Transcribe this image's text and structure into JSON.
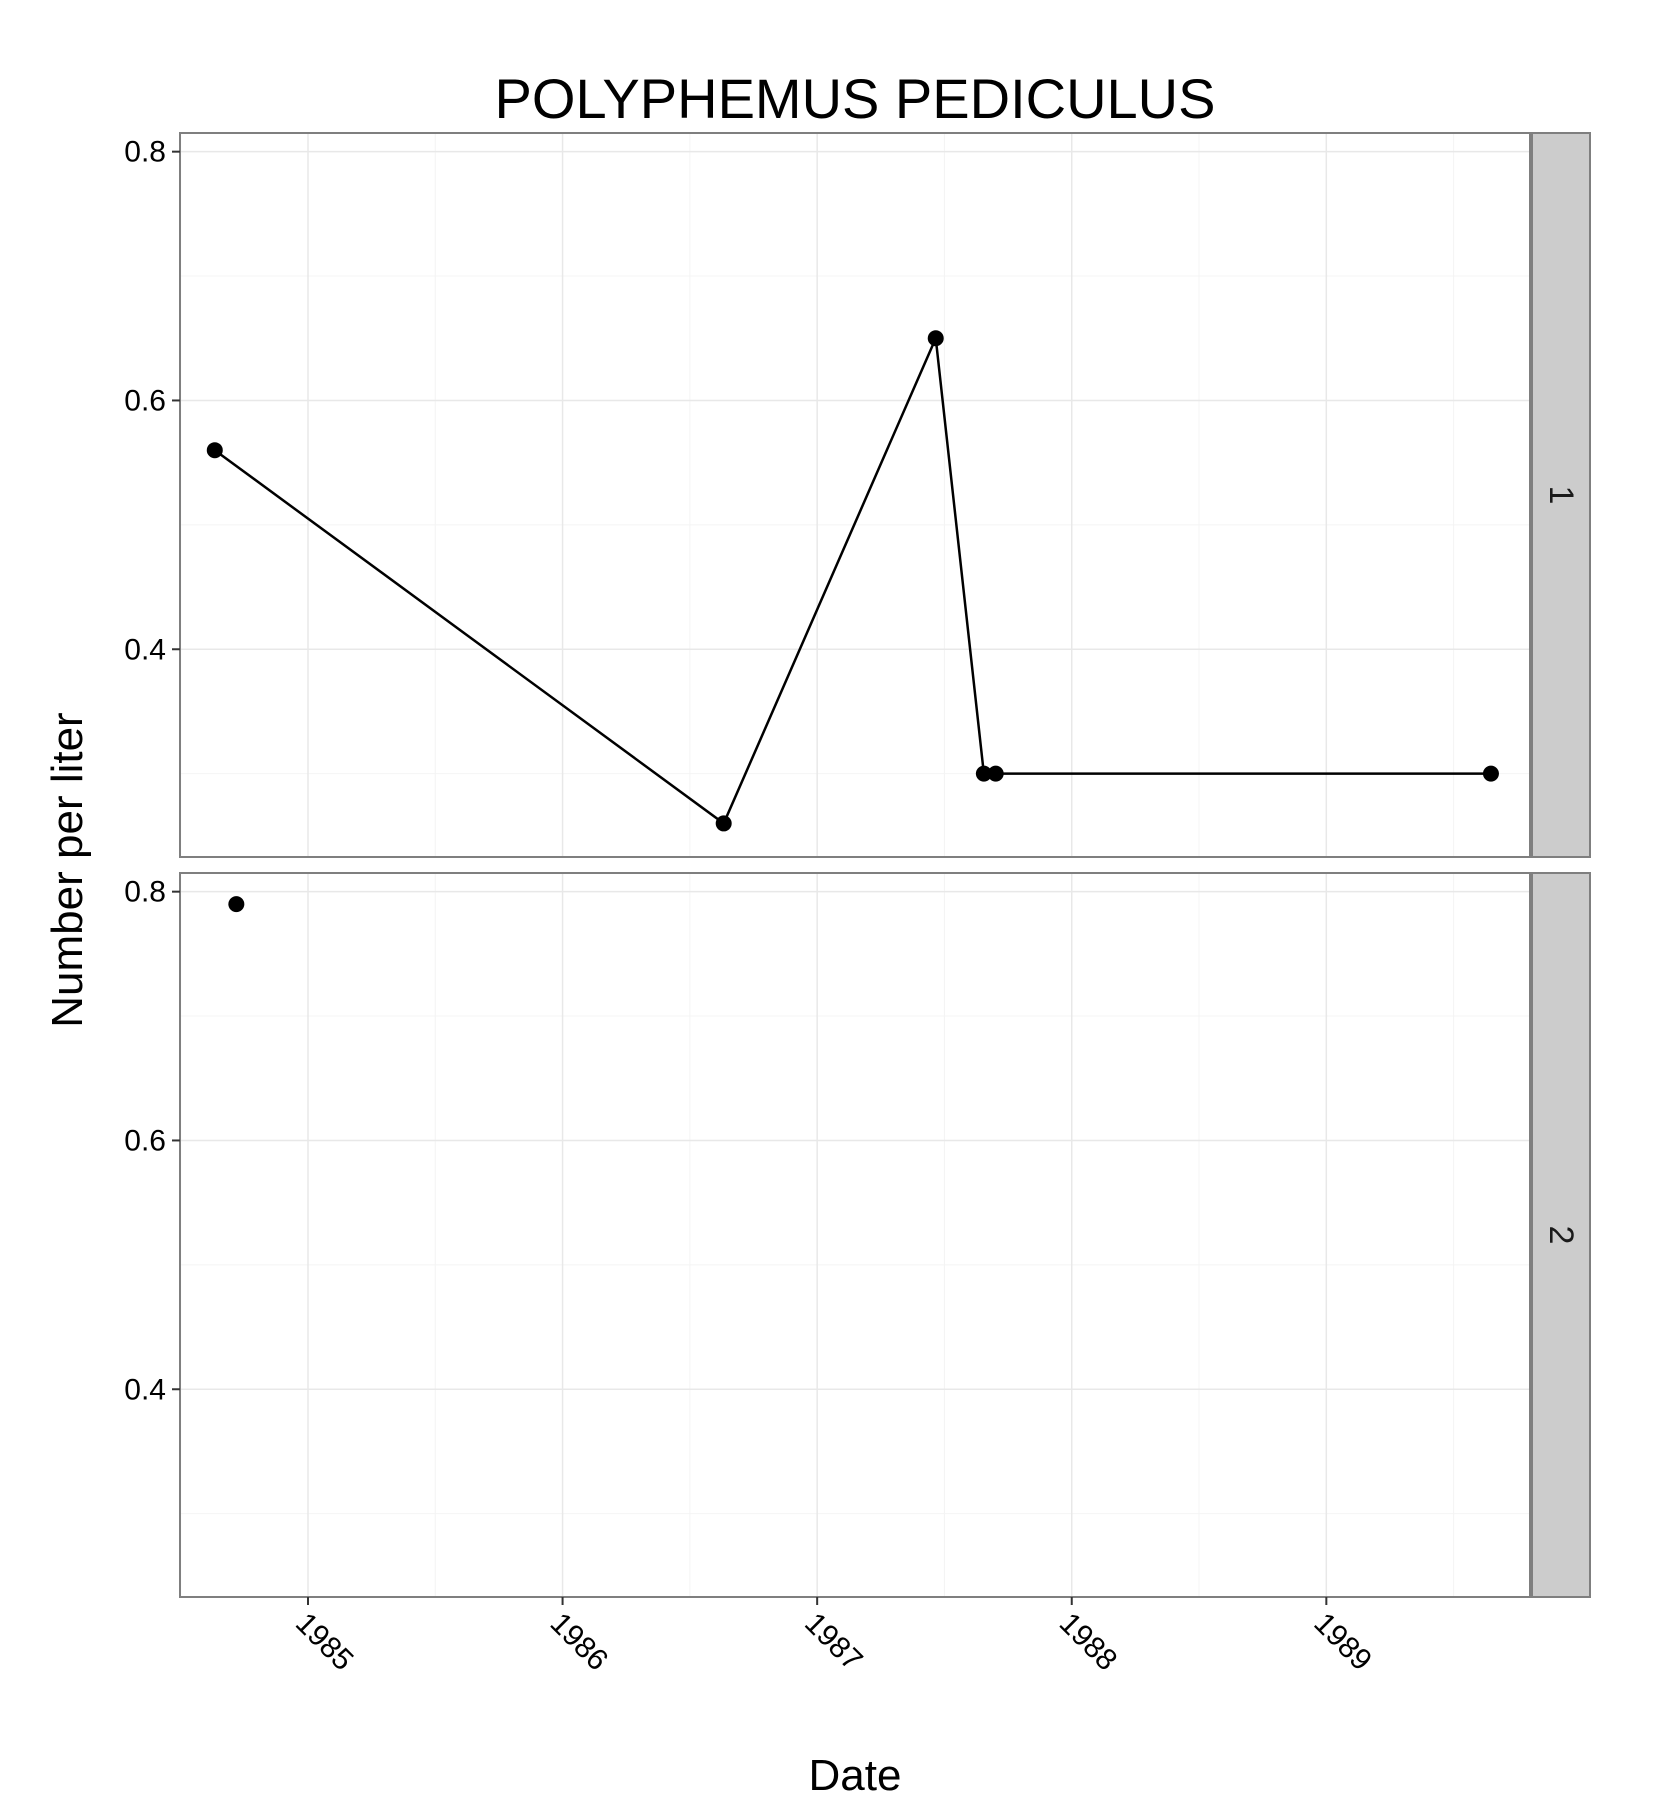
{
  "chart_data": {
    "type": "line",
    "title": "POLYPHEMUS PEDICULUS",
    "xlabel": "Date",
    "ylabel": "Number per liter",
    "xlim": [
      "1984-07-01",
      "1989-10-20"
    ],
    "ylim": [
      0.233,
      0.815
    ],
    "x_ticks": [
      "1985",
      "1986",
      "1987",
      "1988",
      "1989"
    ],
    "y_ticks": [
      "0.4",
      "0.6",
      "0.8"
    ],
    "grid": true,
    "facet_by": "row",
    "panels": [
      {
        "label": "1",
        "points": [
          {
            "x": "1984-08-20",
            "y": 0.56
          },
          {
            "x": "1986-08-20",
            "y": 0.26
          },
          {
            "x": "1987-06-20",
            "y": 0.65
          },
          {
            "x": "1987-08-28",
            "y": 0.3
          },
          {
            "x": "1987-09-14",
            "y": 0.3
          },
          {
            "x": "1989-08-25",
            "y": 0.3
          }
        ]
      },
      {
        "label": "2",
        "points": [
          {
            "x": "1984-09-20",
            "y": 0.79
          }
        ]
      }
    ]
  }
}
